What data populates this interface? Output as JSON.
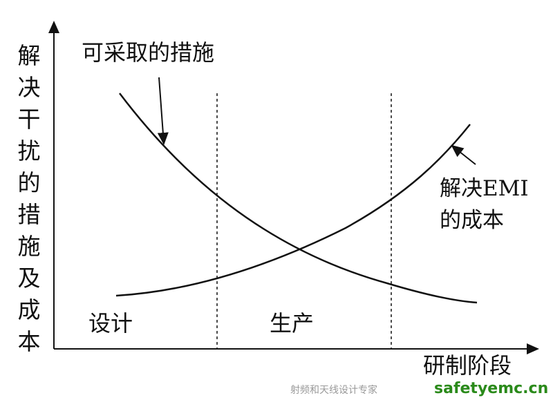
{
  "y_axis_label": "解决干扰的措施及成本",
  "x_axis_label": "研制阶段",
  "curve_labels": {
    "measures": "可采取的措施",
    "emi_cost_line1": "解决EMI",
    "emi_cost_line2": "的成本"
  },
  "phases": [
    "设计",
    "生产"
  ],
  "watermark": {
    "site": "safetyemc.cn",
    "tagline": "射频和天线设计专家"
  }
}
